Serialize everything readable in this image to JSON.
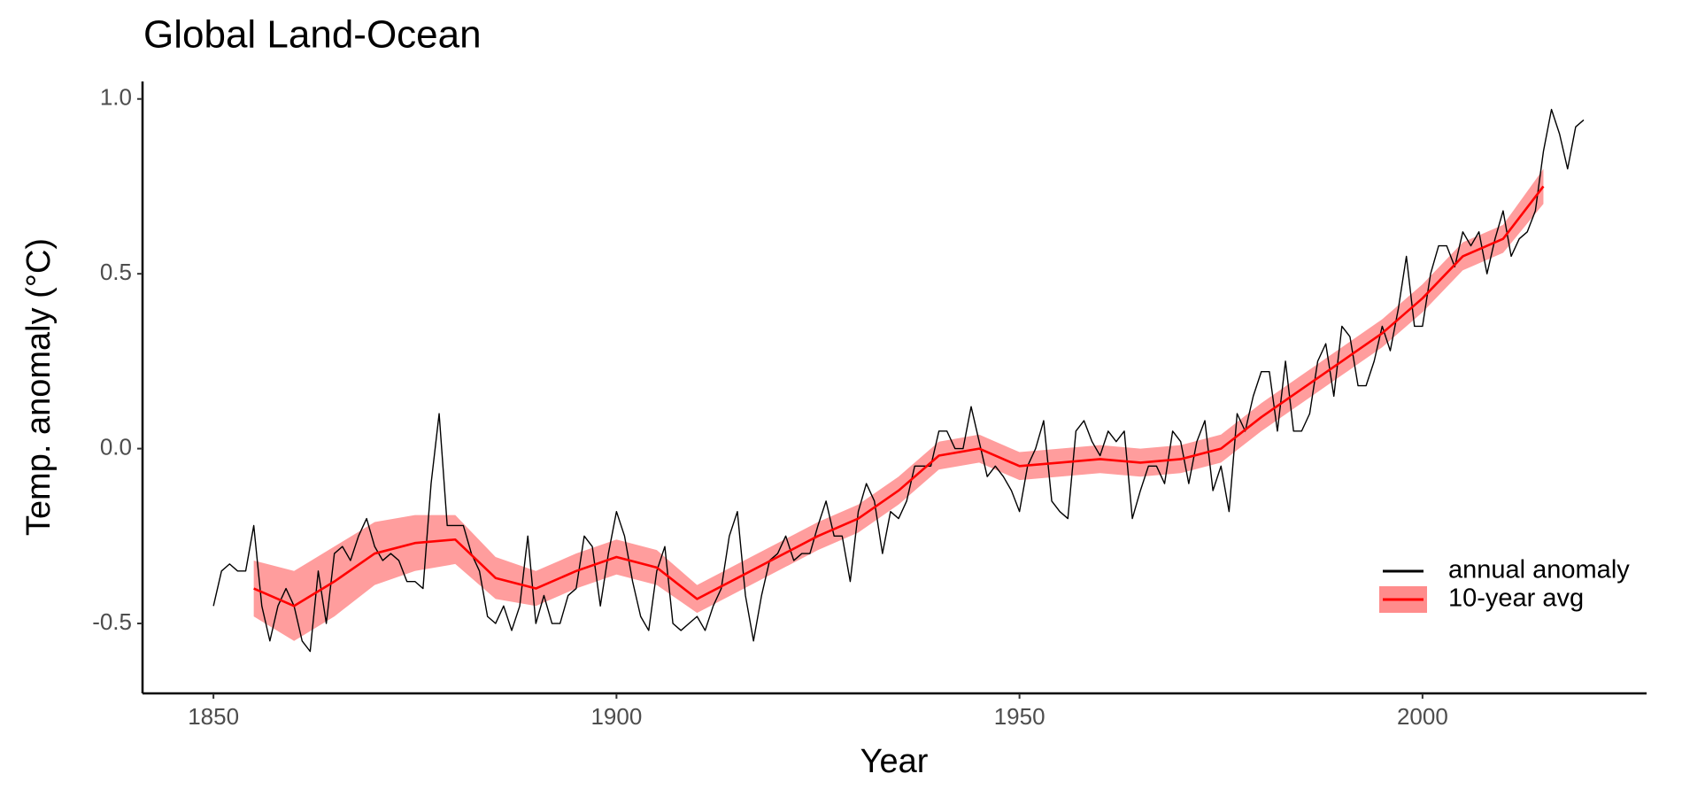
{
  "chart_data": {
    "type": "line",
    "title": "Global Land-Ocean",
    "x_label": "Year",
    "y_label": "Temp. anomaly (°C)",
    "xlim": [
      1841.2,
      2027.8
    ],
    "xticks": [
      1850,
      1900,
      1950,
      2000
    ],
    "ylim": [
      -0.7,
      1.05
    ],
    "yticks": [
      {
        "value": -0.5,
        "label": "-0.5"
      },
      {
        "value": 0.0,
        "label": "0.0"
      },
      0.5,
      {
        "value": 1.0,
        "label": "1.0"
      }
    ],
    "grid": false,
    "legend": "bottom-right",
    "series": [
      {
        "name": "annual anomaly",
        "color": "#000000",
        "x": [
          1850,
          1851,
          1852,
          1853,
          1854,
          1855,
          1856,
          1857,
          1858,
          1859,
          1860,
          1861,
          1862,
          1863,
          1864,
          1865,
          1866,
          1867,
          1868,
          1869,
          1870,
          1871,
          1872,
          1873,
          1874,
          1875,
          1876,
          1877,
          1878,
          1879,
          1880,
          1881,
          1882,
          1883,
          1884,
          1885,
          1886,
          1887,
          1888,
          1889,
          1890,
          1891,
          1892,
          1893,
          1894,
          1895,
          1896,
          1897,
          1898,
          1899,
          1900,
          1901,
          1902,
          1903,
          1904,
          1905,
          1906,
          1907,
          1908,
          1909,
          1910,
          1911,
          1912,
          1913,
          1914,
          1915,
          1916,
          1917,
          1918,
          1919,
          1920,
          1921,
          1922,
          1923,
          1924,
          1925,
          1926,
          1927,
          1928,
          1929,
          1930,
          1931,
          1932,
          1933,
          1934,
          1935,
          1936,
          1937,
          1938,
          1939,
          1940,
          1941,
          1942,
          1943,
          1944,
          1945,
          1946,
          1947,
          1948,
          1949,
          1950,
          1951,
          1952,
          1953,
          1954,
          1955,
          1956,
          1957,
          1958,
          1959,
          1960,
          1961,
          1962,
          1963,
          1964,
          1965,
          1966,
          1967,
          1968,
          1969,
          1970,
          1971,
          1972,
          1973,
          1974,
          1975,
          1976,
          1977,
          1978,
          1979,
          1980,
          1981,
          1982,
          1983,
          1984,
          1985,
          1986,
          1987,
          1988,
          1989,
          1990,
          1991,
          1992,
          1993,
          1994,
          1995,
          1996,
          1997,
          1998,
          1999,
          2000,
          2001,
          2002,
          2003,
          2004,
          2005,
          2006,
          2007,
          2008,
          2009,
          2010,
          2011,
          2012,
          2013,
          2014,
          2015,
          2016,
          2017,
          2018,
          2019,
          2020
        ],
        "values": [
          -0.45,
          -0.35,
          -0.33,
          -0.35,
          -0.35,
          -0.22,
          -0.45,
          -0.55,
          -0.45,
          -0.4,
          -0.45,
          -0.55,
          -0.58,
          -0.35,
          -0.5,
          -0.3,
          -0.28,
          -0.32,
          -0.25,
          -0.2,
          -0.28,
          -0.32,
          -0.3,
          -0.32,
          -0.38,
          -0.38,
          -0.4,
          -0.1,
          0.1,
          -0.22,
          -0.22,
          -0.22,
          -0.3,
          -0.35,
          -0.48,
          -0.5,
          -0.45,
          -0.52,
          -0.45,
          -0.25,
          -0.5,
          -0.42,
          -0.5,
          -0.5,
          -0.42,
          -0.4,
          -0.25,
          -0.28,
          -0.45,
          -0.3,
          -0.18,
          -0.25,
          -0.38,
          -0.48,
          -0.52,
          -0.35,
          -0.28,
          -0.5,
          -0.52,
          -0.5,
          -0.48,
          -0.52,
          -0.45,
          -0.4,
          -0.25,
          -0.18,
          -0.42,
          -0.55,
          -0.42,
          -0.32,
          -0.3,
          -0.25,
          -0.32,
          -0.3,
          -0.3,
          -0.22,
          -0.15,
          -0.25,
          -0.25,
          -0.38,
          -0.18,
          -0.1,
          -0.15,
          -0.3,
          -0.18,
          -0.2,
          -0.15,
          -0.05,
          -0.05,
          -0.05,
          0.05,
          0.05,
          0.0,
          0.0,
          0.12,
          0.02,
          -0.08,
          -0.05,
          -0.08,
          -0.12,
          -0.18,
          -0.05,
          0.0,
          0.08,
          -0.15,
          -0.18,
          -0.2,
          0.05,
          0.08,
          0.02,
          -0.02,
          0.05,
          0.02,
          0.05,
          -0.2,
          -0.12,
          -0.05,
          -0.05,
          -0.1,
          0.05,
          0.02,
          -0.1,
          0.02,
          0.08,
          -0.12,
          -0.05,
          -0.18,
          0.1,
          0.05,
          0.15,
          0.22,
          0.22,
          0.05,
          0.25,
          0.05,
          0.05,
          0.1,
          0.25,
          0.3,
          0.15,
          0.35,
          0.32,
          0.18,
          0.18,
          0.25,
          0.35,
          0.28,
          0.4,
          0.55,
          0.35,
          0.35,
          0.5,
          0.58,
          0.58,
          0.52,
          0.62,
          0.58,
          0.62,
          0.5,
          0.6,
          0.68,
          0.55,
          0.6,
          0.62,
          0.68,
          0.85,
          0.97,
          0.9,
          0.8,
          0.92,
          0.94
        ]
      },
      {
        "name": "10-year avg",
        "color": "#ff0000",
        "band_color": "#ff8c8c",
        "x": [
          1855,
          1860,
          1865,
          1870,
          1875,
          1880,
          1885,
          1890,
          1895,
          1900,
          1905,
          1910,
          1915,
          1920,
          1925,
          1930,
          1935,
          1940,
          1945,
          1950,
          1955,
          1960,
          1965,
          1970,
          1975,
          1980,
          1985,
          1990,
          1995,
          2000,
          2005,
          2010,
          2015
        ],
        "values": [
          -0.4,
          -0.45,
          -0.38,
          -0.3,
          -0.27,
          -0.26,
          -0.37,
          -0.4,
          -0.35,
          -0.31,
          -0.34,
          -0.43,
          -0.37,
          -0.31,
          -0.25,
          -0.2,
          -0.12,
          -0.02,
          0.0,
          -0.05,
          -0.04,
          -0.03,
          -0.04,
          -0.03,
          0.0,
          0.09,
          0.17,
          0.25,
          0.33,
          0.43,
          0.55,
          0.6,
          0.75
        ],
        "lower": [
          -0.48,
          -0.55,
          -0.48,
          -0.39,
          -0.35,
          -0.33,
          -0.43,
          -0.45,
          -0.4,
          -0.36,
          -0.39,
          -0.47,
          -0.41,
          -0.35,
          -0.29,
          -0.24,
          -0.16,
          -0.06,
          -0.04,
          -0.09,
          -0.08,
          -0.07,
          -0.08,
          -0.07,
          -0.04,
          0.05,
          0.13,
          0.21,
          0.29,
          0.39,
          0.51,
          0.56,
          0.7
        ],
        "upper": [
          -0.32,
          -0.35,
          -0.28,
          -0.21,
          -0.19,
          -0.19,
          -0.31,
          -0.35,
          -0.3,
          -0.26,
          -0.29,
          -0.39,
          -0.33,
          -0.27,
          -0.21,
          -0.16,
          -0.08,
          0.02,
          0.04,
          -0.01,
          0.0,
          0.01,
          0.0,
          0.01,
          0.04,
          0.13,
          0.21,
          0.29,
          0.37,
          0.47,
          0.59,
          0.64,
          0.8
        ]
      }
    ]
  }
}
